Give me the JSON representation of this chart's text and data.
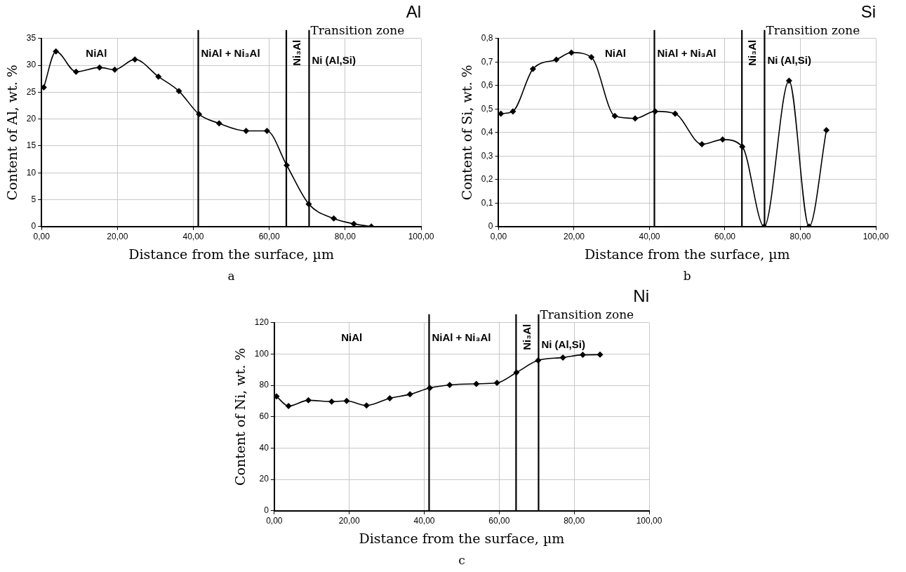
{
  "chart_data": [
    {
      "type": "line",
      "title": "Al",
      "xlabel": "Distance from the surface, µm",
      "ylabel": "Content of Al, wt. %",
      "x": [
        0.6,
        3.8,
        9.1,
        15.3,
        19.3,
        24.6,
        30.8,
        36.2,
        41.5,
        46.8,
        53.9,
        59.4,
        64.6,
        70.4,
        77.0,
        82.3,
        86.9
      ],
      "series": [
        {
          "color": "#000000",
          "values": [
            25.9,
            32.6,
            28.8,
            29.6,
            29.2,
            31.1,
            27.9,
            25.2,
            20.9,
            19.2,
            17.8,
            17.8,
            11.4,
            4.2,
            1.5,
            0.5,
            0
          ]
        }
      ],
      "xlim": [
        0,
        100
      ],
      "xticks": [
        {
          "value": 0,
          "label": "0,00"
        },
        {
          "value": 20,
          "label": "20,00"
        },
        {
          "value": 40,
          "label": "40,00"
        },
        {
          "value": 60,
          "label": "60,00"
        },
        {
          "value": 80,
          "label": "80,00"
        },
        {
          "value": 100,
          "label": "100,00"
        }
      ],
      "ylim": [
        0,
        35
      ],
      "yticks": [
        0,
        5,
        10,
        15,
        20,
        25,
        30,
        35
      ],
      "ref_lines": [
        {
          "axis": "x",
          "value": 41.3
        },
        {
          "axis": "x",
          "value": 64.5
        },
        {
          "axis": "x",
          "value": 70.5,
          "label": "Transition zone"
        }
      ],
      "annotations": [
        "NiAl",
        "NiAl + Ni₃Al",
        "Ni₃Al",
        "Ni (Al,Si)",
        "a"
      ],
      "grid": true,
      "legend": false,
      "marker": "diamond",
      "line_style": "solid"
    },
    {
      "type": "line",
      "title": "Si",
      "xlabel": "Distance from the surface, µm",
      "ylabel": "Content of Si, wt. %",
      "x": [
        0.6,
        3.8,
        9.1,
        15.3,
        19.3,
        24.6,
        30.8,
        36.2,
        41.5,
        46.8,
        53.9,
        59.4,
        64.6,
        70.4,
        77.0,
        82.3,
        86.9
      ],
      "series": [
        {
          "color": "#000000",
          "values": [
            0.48,
            0.49,
            0.67,
            0.71,
            0.74,
            0.72,
            0.47,
            0.46,
            0.49,
            0.48,
            0.35,
            0.37,
            0.34,
            0,
            0.62,
            0,
            0.41
          ]
        }
      ],
      "xlim": [
        0,
        100
      ],
      "xticks": [
        {
          "value": 0,
          "label": "0,00"
        },
        {
          "value": 20,
          "label": "20,00"
        },
        {
          "value": 40,
          "label": "40,00"
        },
        {
          "value": 60,
          "label": "60,00"
        },
        {
          "value": 80,
          "label": "80,00"
        },
        {
          "value": 100,
          "label": "100,00"
        }
      ],
      "ylim": [
        0,
        0.8
      ],
      "yticks": [
        0,
        {
          "value": 0.1,
          "label": "0,1"
        },
        {
          "value": 0.2,
          "label": "0,2"
        },
        {
          "value": 0.3,
          "label": "0,3"
        },
        {
          "value": 0.4,
          "label": "0,4"
        },
        {
          "value": 0.5,
          "label": "0,5"
        },
        {
          "value": 0.6,
          "label": "0,6"
        },
        {
          "value": 0.7,
          "label": "0,7"
        },
        {
          "value": 0.8,
          "label": "0,8"
        }
      ],
      "ref_lines": [
        {
          "axis": "x",
          "value": 41.3
        },
        {
          "axis": "x",
          "value": 64.5
        },
        {
          "axis": "x",
          "value": 70.5,
          "label": "Transition zone"
        }
      ],
      "annotations": [
        "NiAl",
        "NiAl + Ni₃Al",
        "Ni₃Al",
        "Ni (Al,Si)",
        "b"
      ],
      "grid": true,
      "legend": false,
      "marker": "diamond",
      "line_style": "solid"
    },
    {
      "type": "line",
      "title": "Ni",
      "xlabel": "Distance from the surface, µm",
      "ylabel": "Content of Ni, wt. %",
      "x": [
        0.6,
        3.8,
        9.1,
        15.3,
        19.3,
        24.6,
        30.8,
        36.2,
        41.5,
        46.8,
        53.9,
        59.4,
        64.6,
        70.4,
        77.0,
        82.3,
        86.9
      ],
      "series": [
        {
          "color": "#000000",
          "values": [
            73,
            66.8,
            70.5,
            69.7,
            70.1,
            67.2,
            71.8,
            74.3,
            78.4,
            80.3,
            81,
            81.6,
            88.2,
            96,
            97.8,
            99.5,
            99.6
          ]
        }
      ],
      "xlim": [
        0,
        100
      ],
      "xticks": [
        {
          "value": 0,
          "label": "0,00"
        },
        {
          "value": 20,
          "label": "20,00"
        },
        {
          "value": 40,
          "label": "40,00"
        },
        {
          "value": 60,
          "label": "60,00"
        },
        {
          "value": 80,
          "label": "80,00"
        },
        {
          "value": 100,
          "label": "100,00"
        }
      ],
      "ylim": [
        0,
        120
      ],
      "yticks": [
        0,
        20,
        40,
        60,
        80,
        100,
        120
      ],
      "ref_lines": [
        {
          "axis": "x",
          "value": 41.3
        },
        {
          "axis": "x",
          "value": 64.5
        },
        {
          "axis": "x",
          "value": 70.5,
          "label": "Transition zone"
        }
      ],
      "annotations": [
        "NiAl",
        "NiAl + Ni₃Al",
        "Ni₃Al",
        "Ni (Al,Si)",
        "c"
      ],
      "grid": true,
      "legend": false,
      "marker": "diamond",
      "line_style": "solid"
    }
  ]
}
